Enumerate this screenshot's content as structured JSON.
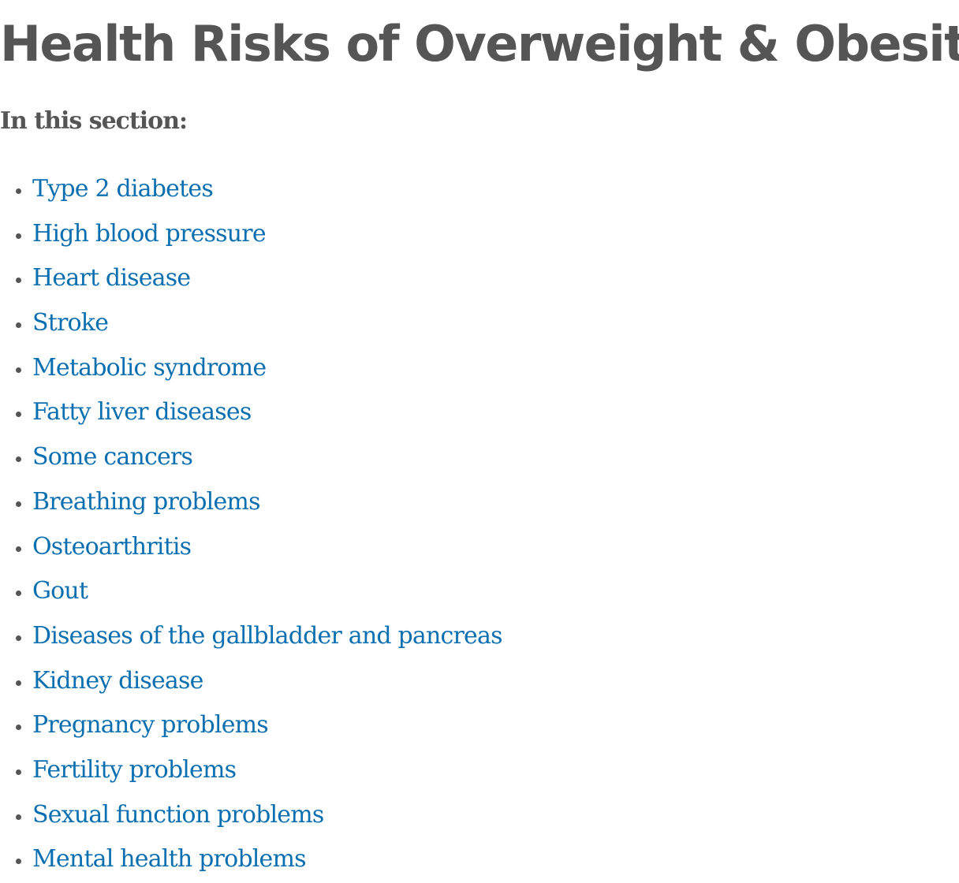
{
  "header": {
    "title": "Health Risks of Overweight & Obesity",
    "subtitle": "In this section:"
  },
  "links": [
    "Type 2 diabetes",
    "High blood pressure",
    "Heart disease",
    "Stroke",
    "Metabolic syndrome",
    "Fatty liver diseases",
    "Some cancers",
    "Breathing problems",
    "Osteoarthritis",
    "Gout",
    "Diseases of the gallbladder and pancreas",
    "Kidney disease",
    "Pregnancy problems",
    "Fertility problems",
    "Sexual function problems",
    "Mental health problems"
  ]
}
